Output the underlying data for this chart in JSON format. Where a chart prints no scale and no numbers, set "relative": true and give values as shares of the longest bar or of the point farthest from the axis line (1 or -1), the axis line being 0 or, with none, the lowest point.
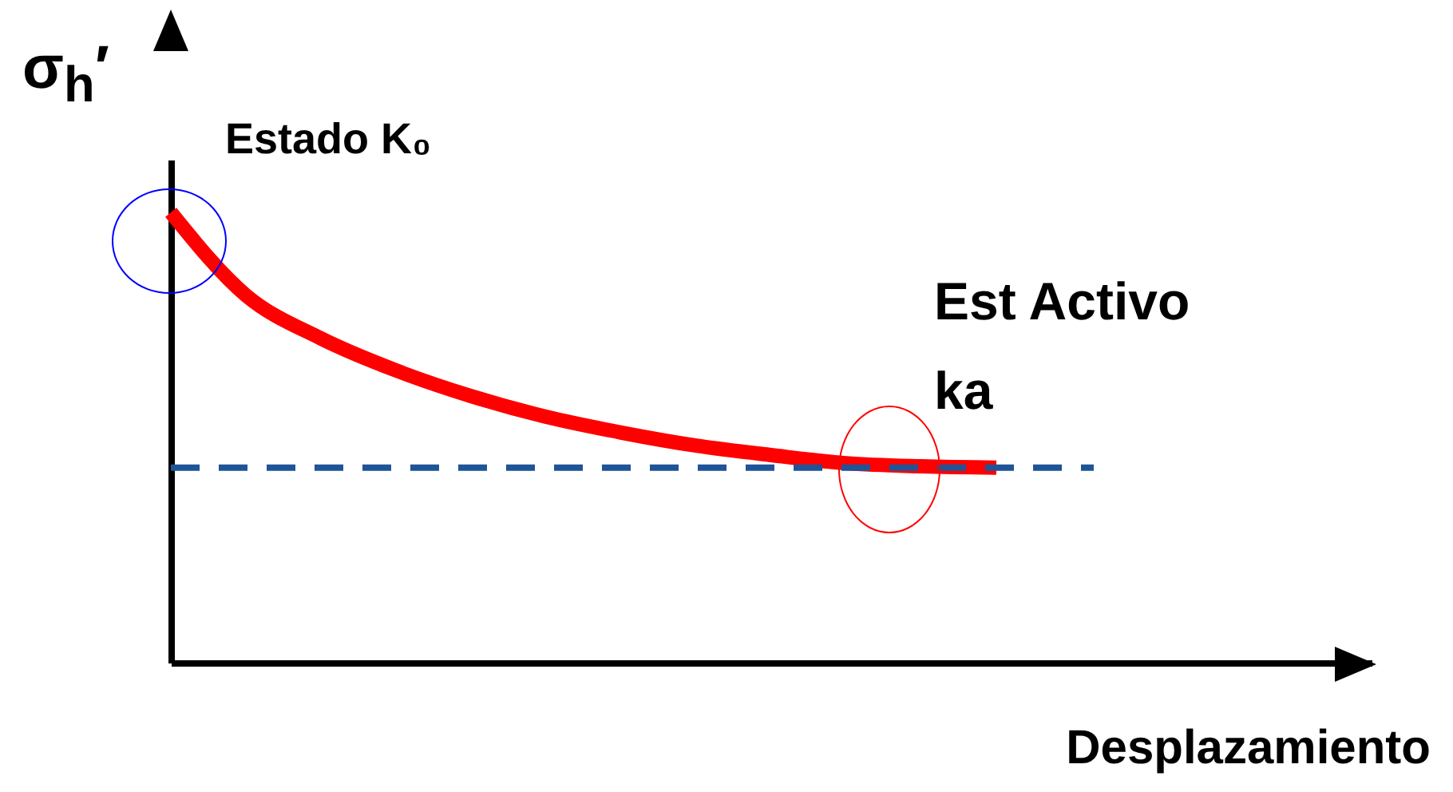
{
  "chart_data": {
    "type": "line",
    "relative": true,
    "tick_labels": false,
    "grid": false,
    "marker": "none",
    "line_style": "solid",
    "ylabel": "σ$_{h}$′",
    "xlabel": "Desplazamiento",
    "annotations": [
      "Estado K₀",
      "Est Activo",
      "ka"
    ],
    "categories": [
      null,
      null,
      null,
      null,
      null,
      null,
      null,
      null,
      null,
      null,
      null,
      null,
      null,
      null,
      null,
      null,
      null
    ],
    "series": [
      {
        "color": "#ff0000",
        "values": [
          1,
          0.816,
          0.72,
          0.649,
          0.592,
          0.546,
          0.511,
          0.482,
          0.461,
          0.443,
          0.436,
          0.433,
          null,
          null,
          null,
          null,
          null
        ]
      }
    ],
    "ref_lines": [
      {
        "axis": "y",
        "value": 0.433,
        "color": "#1f5496",
        "line_style": "dashed"
      }
    ]
  }
}
